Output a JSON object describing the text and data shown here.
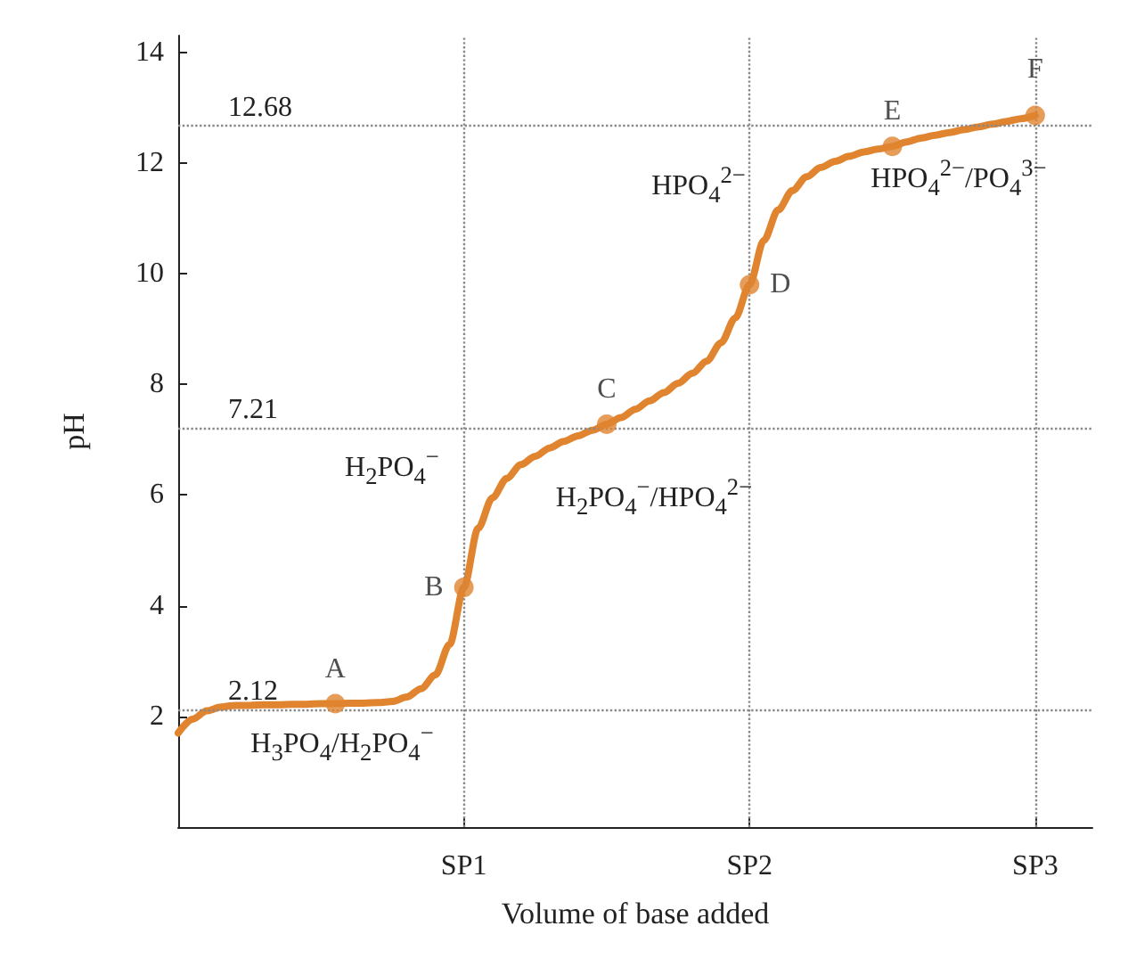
{
  "chart_data": {
    "type": "line",
    "xlabel": "Volume of base added",
    "ylabel": "pH",
    "categories": [
      null,
      null,
      null,
      null,
      null,
      null,
      null,
      null,
      null,
      null,
      null,
      null,
      null,
      null,
      null,
      null,
      null,
      null,
      null,
      null,
      "SP1",
      null,
      null,
      null,
      null,
      null,
      null,
      null,
      null,
      null,
      null,
      null,
      null,
      null,
      null,
      null,
      null,
      null,
      null,
      null,
      "SP2",
      null,
      null,
      null,
      null,
      null,
      null,
      null,
      null,
      null,
      null,
      null,
      null,
      null,
      null,
      null,
      null,
      null,
      null,
      null,
      "SP3",
      null,
      null,
      null,
      null
    ],
    "ylim": [
      0,
      14.3
    ],
    "yticks": [
      2,
      4,
      6,
      8,
      10,
      12,
      14
    ],
    "series": [
      {
        "color": "#e0842f",
        "marker": "none",
        "values": [
          1.7,
          1.95,
          2.1,
          2.17,
          2.2,
          2.2,
          2.21,
          2.21,
          2.22,
          2.22,
          2.23,
          2.23,
          2.24,
          2.24,
          2.25,
          2.27,
          2.35,
          2.5,
          2.75,
          3.3,
          4.33,
          5.4,
          5.95,
          6.3,
          6.55,
          6.7,
          6.85,
          6.97,
          7.07,
          7.17,
          7.28,
          7.4,
          7.55,
          7.7,
          7.85,
          8.02,
          8.2,
          8.42,
          8.75,
          9.2,
          9.8,
          10.6,
          11.15,
          11.5,
          11.75,
          11.92,
          12.03,
          12.12,
          12.2,
          12.25,
          12.3,
          12.38,
          12.45,
          12.5,
          12.55,
          12.6,
          12.65,
          12.7,
          12.75,
          12.8,
          12.86,
          null,
          null,
          null,
          null
        ]
      },
      {
        "type": "scatter",
        "color": "#e0842f",
        "marker": "circle",
        "values": [
          null,
          null,
          null,
          null,
          null,
          null,
          null,
          null,
          null,
          null,
          null,
          2.23,
          null,
          null,
          null,
          null,
          null,
          null,
          null,
          null,
          4.33,
          null,
          null,
          null,
          null,
          null,
          null,
          null,
          null,
          null,
          7.28,
          null,
          null,
          null,
          null,
          null,
          null,
          null,
          null,
          null,
          9.8,
          null,
          null,
          null,
          null,
          null,
          null,
          null,
          null,
          null,
          12.3,
          null,
          null,
          null,
          null,
          null,
          null,
          null,
          null,
          null,
          12.86,
          null,
          null,
          null,
          null
        ],
        "value_labels": [
          null,
          null,
          null,
          null,
          null,
          null,
          null,
          null,
          null,
          null,
          null,
          "A",
          null,
          null,
          null,
          null,
          null,
          null,
          null,
          null,
          "B",
          null,
          null,
          null,
          null,
          null,
          null,
          null,
          null,
          null,
          "C",
          null,
          null,
          null,
          null,
          null,
          null,
          null,
          null,
          null,
          "D",
          null,
          null,
          null,
          null,
          null,
          null,
          null,
          null,
          null,
          "E",
          null,
          null,
          null,
          null,
          null,
          null,
          null,
          null,
          null,
          "F",
          null,
          null,
          null,
          null
        ]
      }
    ],
    "ref_lines": [
      {
        "axis": "y",
        "value": 12.68,
        "label": "12.68",
        "line_style": "dotted",
        "color": "#888888"
      },
      {
        "axis": "y",
        "value": 7.21,
        "label": "7.21",
        "line_style": "dotted",
        "color": "#888888"
      },
      {
        "axis": "y",
        "value": 2.12,
        "label": "2.12",
        "line_style": "dotted",
        "color": "#888888"
      },
      {
        "axis": "x",
        "value": "SP1",
        "line_style": "dotted",
        "color": "#888888"
      },
      {
        "axis": "x",
        "value": "SP2",
        "line_style": "dotted",
        "color": "#888888"
      },
      {
        "axis": "x",
        "value": "SP3",
        "line_style": "dotted",
        "color": "#888888"
      }
    ],
    "annotations": [
      "H$_{3}$PO$_{4}$/H$_{2}$PO$_{4}$$^{−}$",
      "H$_{2}$PO$_{4}$$^{−}$",
      "H$_{2}$PO$_{4}$$^{−}$/HPO$_{4}$$^{2−}$",
      "HPO$_{4}$$^{2−}$",
      "HPO$_{4}$$^{2−}$/PO$_{4}$$^{3−}$"
    ],
    "grid": false
  }
}
